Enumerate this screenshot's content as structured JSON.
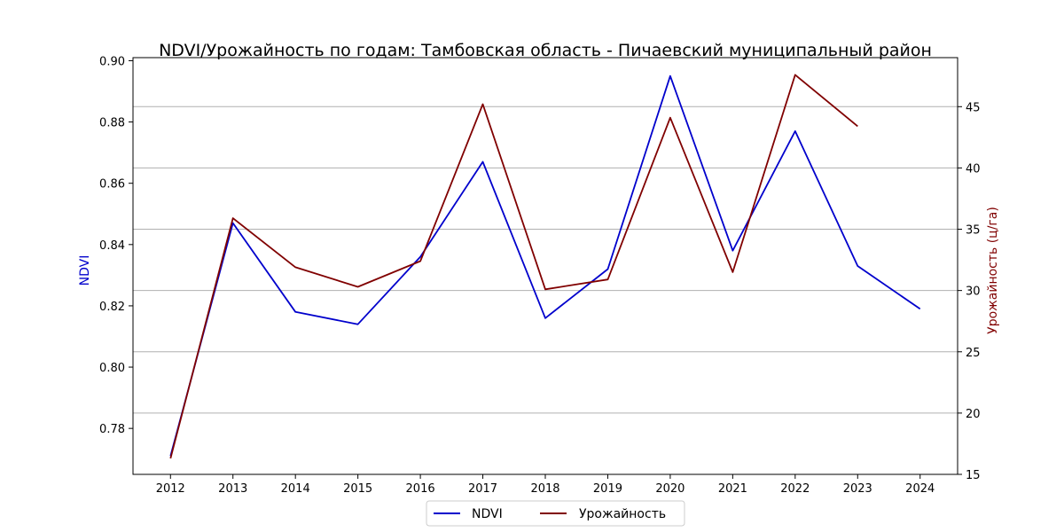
{
  "chart_data": {
    "type": "line",
    "title": "NDVI/Урожайность по годам: Тамбовская область - Пичаевский муниципальный район",
    "x": [
      2012,
      2013,
      2014,
      2015,
      2016,
      2017,
      2018,
      2019,
      2020,
      2021,
      2022,
      2023,
      2024
    ],
    "y_left": {
      "label": "NDVI",
      "color": "#0000cc",
      "ylim": [
        0.765,
        0.901
      ],
      "ticks": [
        "0.78",
        "0.80",
        "0.82",
        "0.84",
        "0.86",
        "0.88",
        "0.90"
      ],
      "tick_values": [
        0.78,
        0.8,
        0.82,
        0.84,
        0.86,
        0.88,
        0.9
      ]
    },
    "y_right": {
      "label": "Урожайность (ц/га)",
      "color": "#800000",
      "ylim": [
        15,
        49
      ],
      "ticks": [
        "15",
        "20",
        "25",
        "30",
        "35",
        "40",
        "45"
      ],
      "tick_values": [
        15,
        20,
        25,
        30,
        35,
        40,
        45
      ]
    },
    "grid": "horizontal (right axis)",
    "legend_position": "bottom-center",
    "series": [
      {
        "name": "NDVI",
        "axis": "left",
        "color": "#0000cc",
        "values": [
          0.771,
          0.847,
          0.818,
          0.814,
          0.836,
          0.867,
          0.816,
          0.832,
          0.895,
          0.838,
          0.877,
          0.833,
          0.819
        ]
      },
      {
        "name": "Урожайность",
        "axis": "right",
        "color": "#800000",
        "values": [
          16.3,
          35.9,
          31.9,
          30.3,
          32.4,
          45.2,
          30.1,
          30.9,
          44.1,
          31.5,
          47.6,
          43.4,
          null
        ]
      }
    ]
  }
}
